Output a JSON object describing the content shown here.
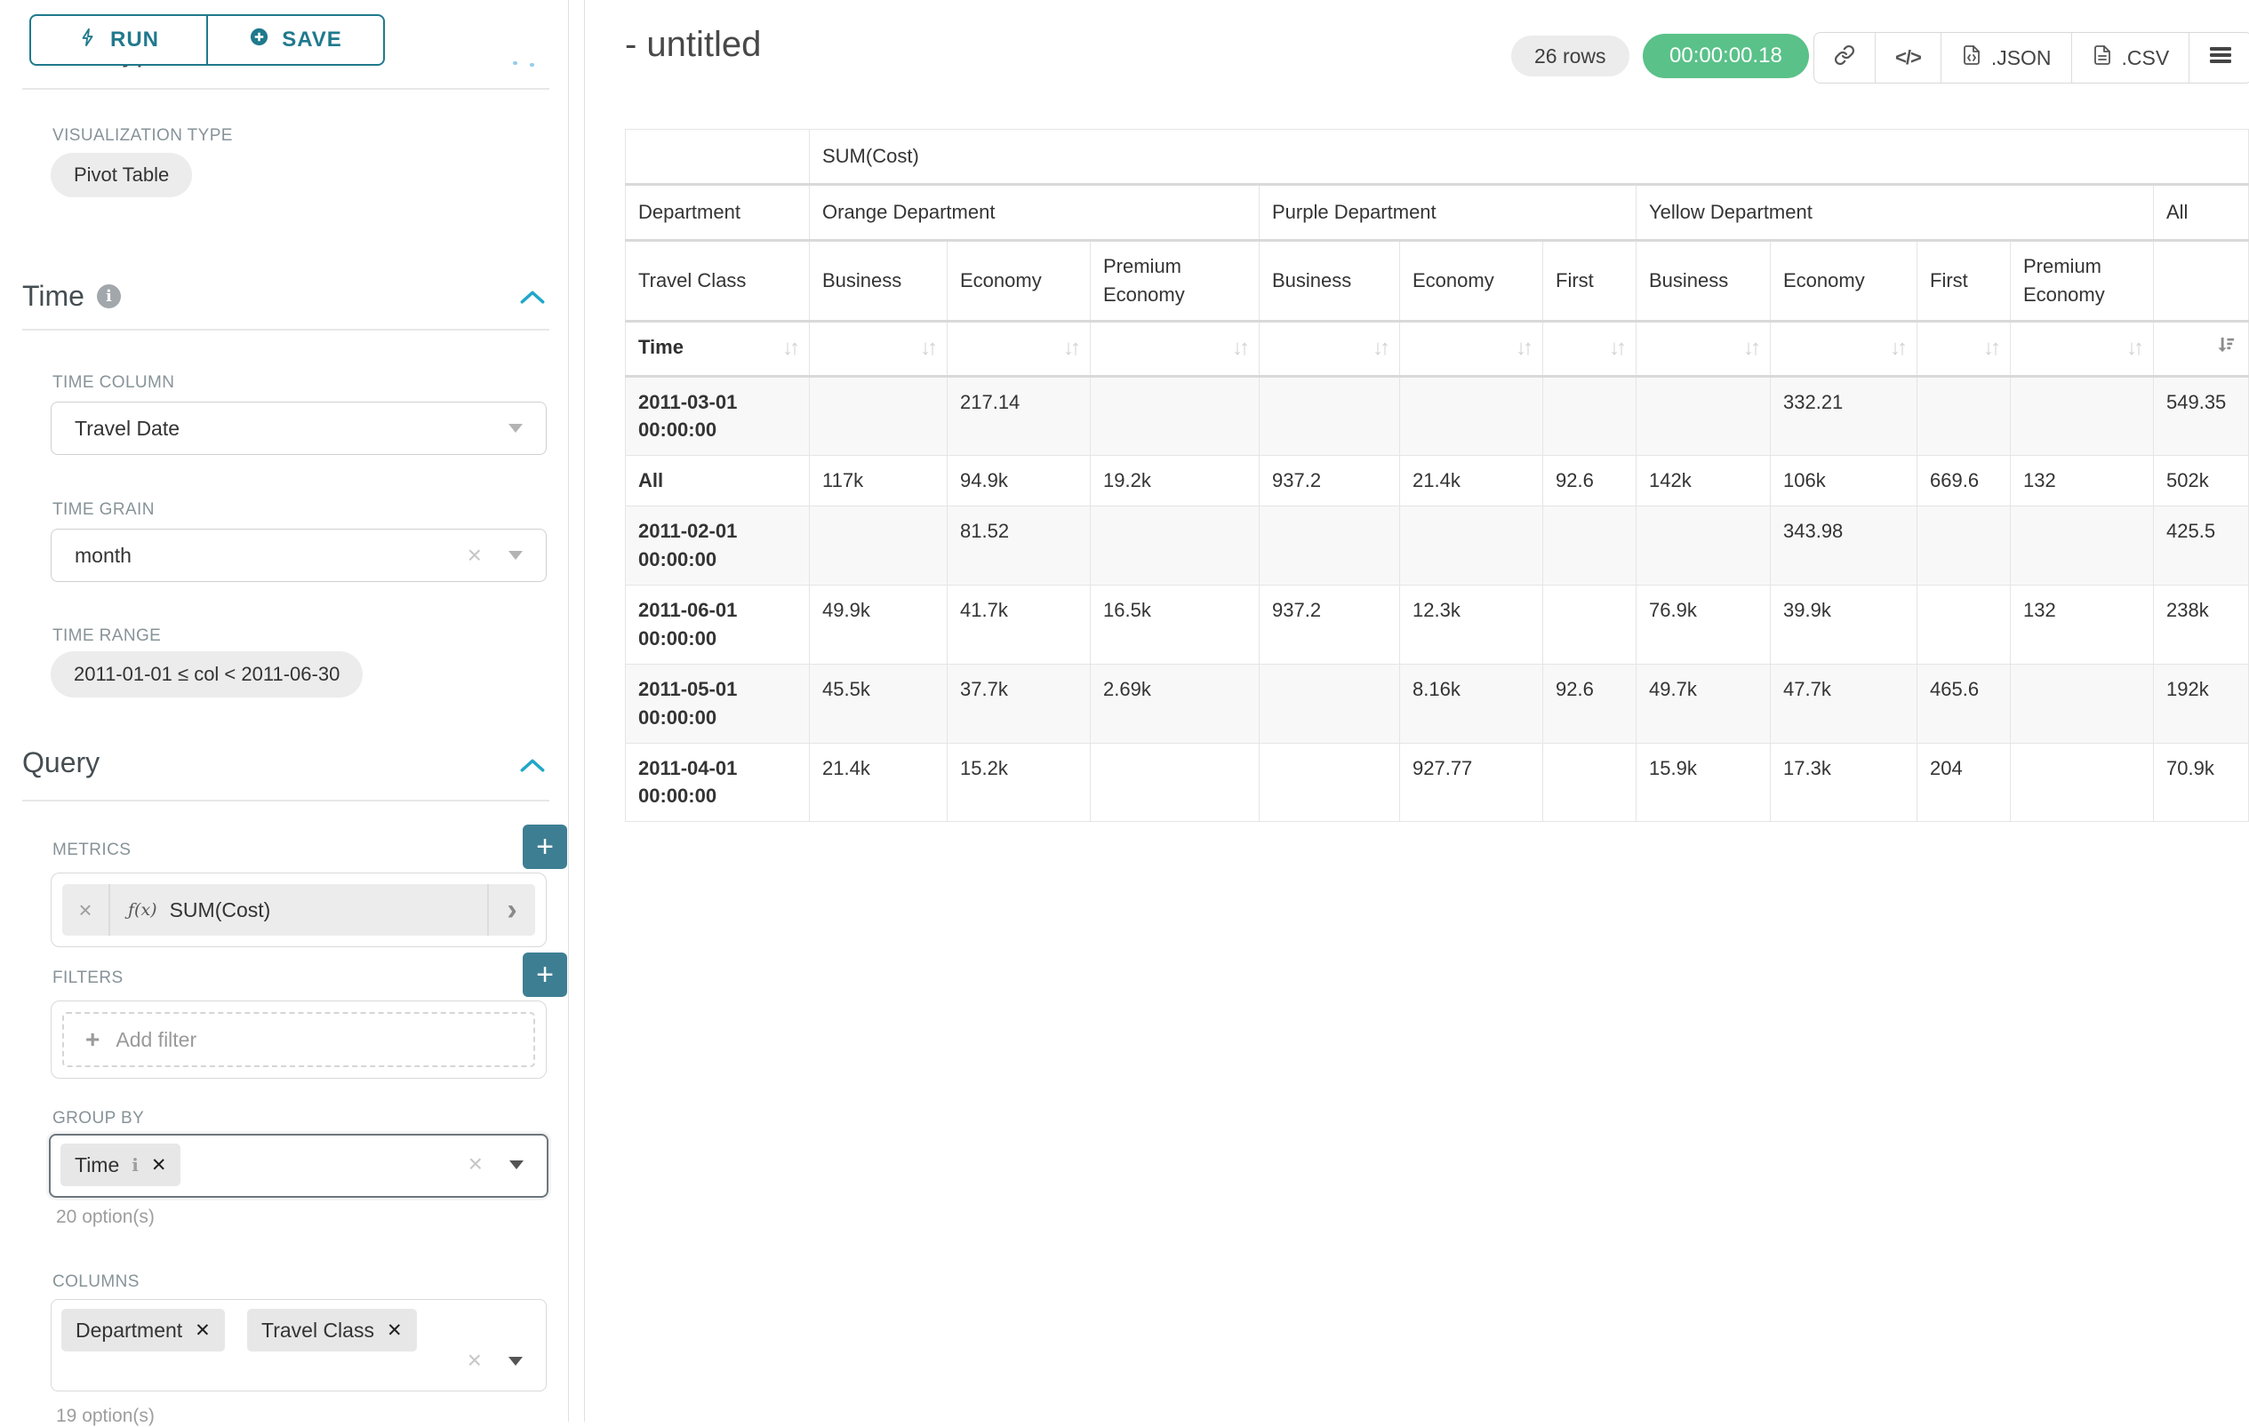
{
  "toolbar": {
    "run": "RUN",
    "save": "SAVE"
  },
  "left": {
    "chart_type_heading": "Chart Type",
    "viz_label": "VISUALIZATION TYPE",
    "viz_value": "Pivot Table",
    "time": {
      "title": "Time",
      "column_label": "TIME COLUMN",
      "column_value": "Travel Date",
      "grain_label": "TIME GRAIN",
      "grain_value": "month",
      "range_label": "TIME RANGE",
      "range_value": "2011-01-01 ≤ col < 2011-06-30"
    },
    "query": {
      "title": "Query",
      "metrics_label": "METRICS",
      "metric_fx": "ƒ(x)",
      "metric_value": "SUM(Cost)",
      "filters_label": "FILTERS",
      "add_filter_label": "Add filter",
      "group_by_label": "GROUP BY",
      "group_chip": "Time",
      "group_options": "20 option(s)",
      "columns_label": "COLUMNS",
      "column_chips": [
        "Department",
        "Travel Class"
      ],
      "columns_options": "19 option(s)"
    }
  },
  "header": {
    "title": "- untitled",
    "rows_badge": "26 rows",
    "timer": "00:00:00.18",
    "json_label": ".JSON",
    "csv_label": ".CSV"
  },
  "main": {
    "pivot_table": {
      "type": "table",
      "metric_header": "SUM(Cost)",
      "col_dim1_label": "Department",
      "col_dim2_label": "Travel Class",
      "row_dim_label": "Time",
      "col_groups": [
        {
          "label": "Orange Department",
          "cols": [
            "Business",
            "Economy",
            "Premium Economy"
          ]
        },
        {
          "label": "Purple Department",
          "cols": [
            "Business",
            "Economy",
            "First"
          ]
        },
        {
          "label": "Yellow Department",
          "cols": [
            "Business",
            "Economy",
            "First",
            "Premium Economy"
          ]
        },
        {
          "label": "All",
          "cols": [
            ""
          ]
        }
      ],
      "rows": [
        {
          "label": "2011-03-01 00:00:00",
          "values": [
            "",
            "217.14",
            "",
            "",
            "",
            "",
            "",
            "332.21",
            "",
            "",
            "549.35"
          ]
        },
        {
          "label": "All",
          "values": [
            "117k",
            "94.9k",
            "19.2k",
            "937.2",
            "21.4k",
            "92.6",
            "142k",
            "106k",
            "669.6",
            "132",
            "502k"
          ]
        },
        {
          "label": "2011-02-01 00:00:00",
          "values": [
            "",
            "81.52",
            "",
            "",
            "",
            "",
            "",
            "343.98",
            "",
            "",
            "425.5"
          ]
        },
        {
          "label": "2011-06-01 00:00:00",
          "values": [
            "49.9k",
            "41.7k",
            "16.5k",
            "937.2",
            "12.3k",
            "",
            "76.9k",
            "39.9k",
            "",
            "132",
            "238k"
          ]
        },
        {
          "label": "2011-05-01 00:00:00",
          "values": [
            "45.5k",
            "37.7k",
            "2.69k",
            "",
            "8.16k",
            "92.6",
            "49.7k",
            "47.7k",
            "465.6",
            "",
            "192k"
          ]
        },
        {
          "label": "2011-04-01 00:00:00",
          "values": [
            "21.4k",
            "15.2k",
            "",
            "",
            "927.77",
            "",
            "15.9k",
            "17.3k",
            "204",
            "",
            "70.9k"
          ]
        }
      ]
    }
  },
  "colors": {
    "accent_teal": "#20798d",
    "plus_button_teal": "#3d7e93",
    "chevron_blue": "#20a7c9",
    "timer_green": "#5ac189",
    "label_gray": "#879399"
  }
}
